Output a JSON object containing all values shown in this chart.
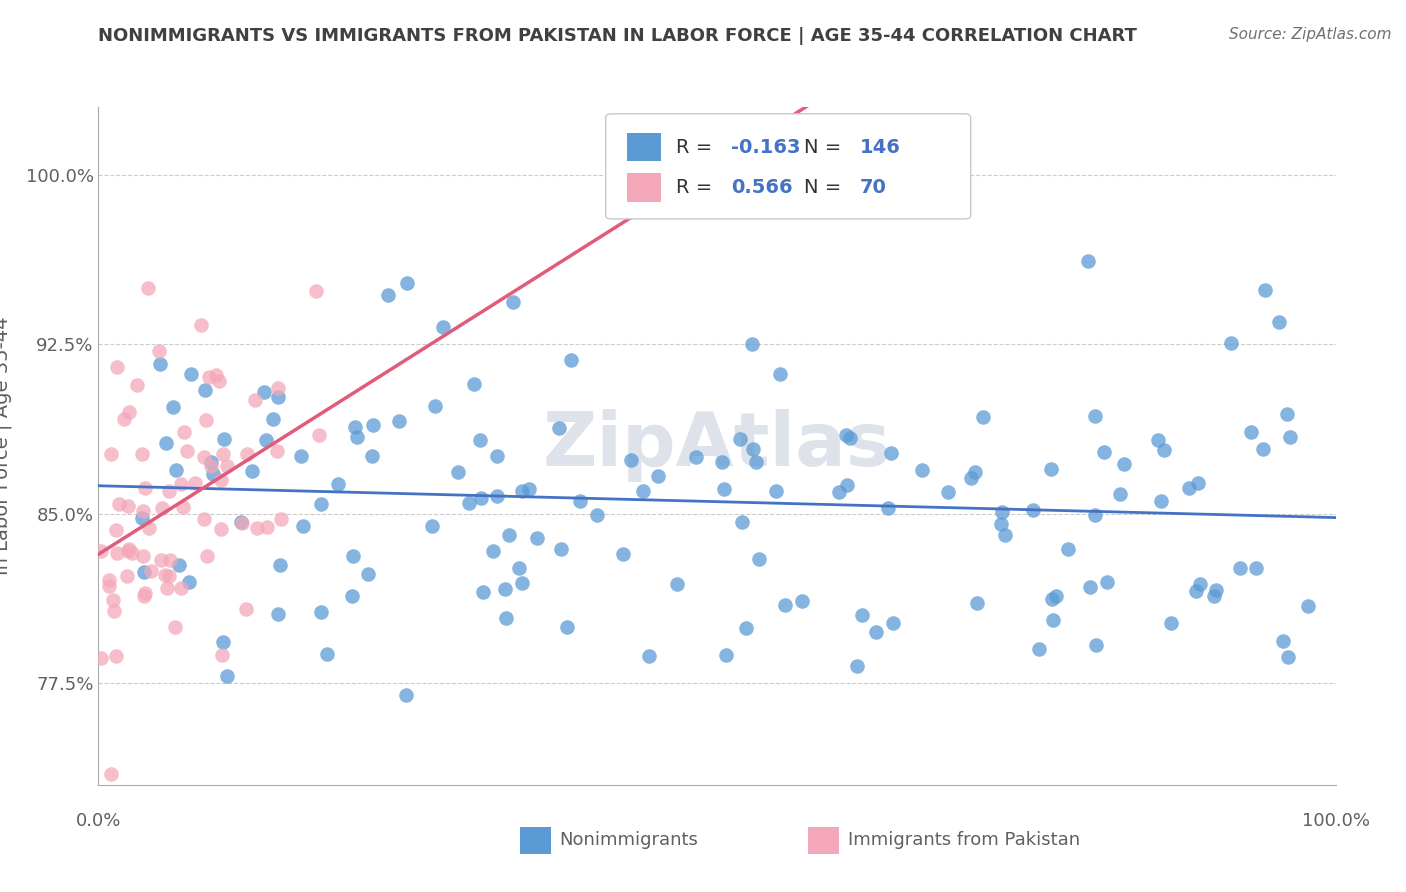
{
  "title": "NONIMMIGRANTS VS IMMIGRANTS FROM PAKISTAN IN LABOR FORCE | AGE 35-44 CORRELATION CHART",
  "source": "Source: ZipAtlas.com",
  "ylabel": "In Labor Force | Age 35-44",
  "y_ticks": [
    77.5,
    85.0,
    92.5,
    100.0
  ],
  "y_tick_labels": [
    "77.5%",
    "85.0%",
    "92.5%",
    "100.0%"
  ],
  "xmin": 0.0,
  "xmax": 100.0,
  "ymin": 73.0,
  "ymax": 103.0,
  "blue_color": "#5b9bd5",
  "pink_color": "#f4a7b9",
  "blue_line_color": "#4472c4",
  "pink_line_color": "#e05c7a",
  "legend_R_blue": "-0.163",
  "legend_N_blue": "146",
  "legend_R_pink": "0.566",
  "legend_N_pink": "70",
  "watermark": "ZipAtlas",
  "watermark_color": "#c8d0de",
  "blue_N": 146,
  "pink_N": 70,
  "blue_intercept": 85.8,
  "blue_slope": -0.013,
  "pink_intercept": 83.2,
  "pink_slope": 0.3,
  "background_color": "#ffffff",
  "grid_color": "#cccccc",
  "title_color": "#404040",
  "axis_label_color": "#606060",
  "legend_value_color": "#4472c4",
  "nonimmigrants_label": "Nonimmigrants",
  "immigrants_label": "Immigrants from Pakistan"
}
